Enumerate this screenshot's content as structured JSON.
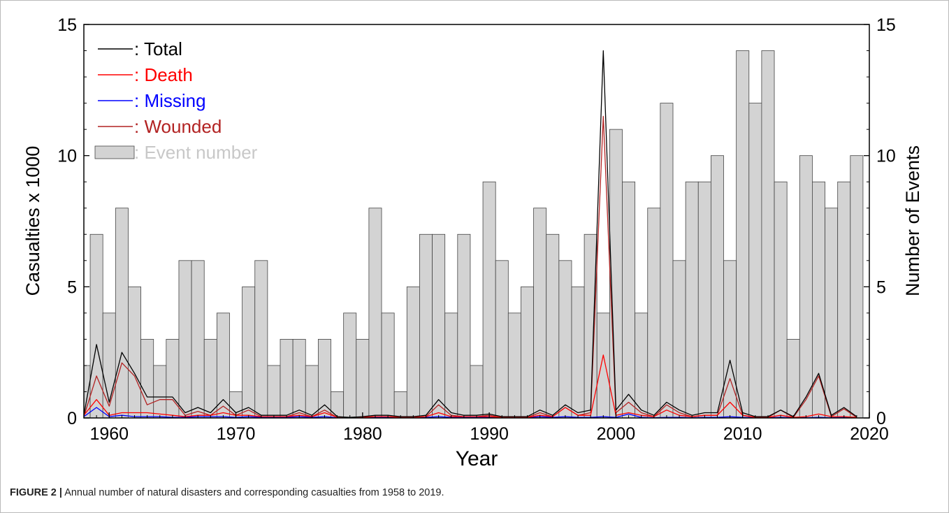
{
  "caption": {
    "label": "FIGURE 2 |",
    "text": " Annual number of natural disasters and corresponding casualties from 1958 to 2019."
  },
  "chart_data": {
    "type": "bar",
    "title": "",
    "xlabel": "Year",
    "ylabel_left": "Casualties x 1000",
    "ylabel_right": "Number of Events",
    "xlim": [
      1958,
      2020
    ],
    "ylim_left": [
      0,
      15
    ],
    "ylim_right": [
      0,
      15
    ],
    "x_ticks": [
      1960,
      1970,
      1980,
      1990,
      2000,
      2010,
      2020
    ],
    "y_ticks_left": [
      0,
      5,
      10,
      15
    ],
    "y_ticks_right": [
      0,
      5,
      10,
      15
    ],
    "legend_position": "top-left",
    "legend": [
      {
        "label": ": Total",
        "color": "#000000",
        "kind": "line"
      },
      {
        "label": ": Death",
        "color": "#ff0000",
        "kind": "line"
      },
      {
        "label": ": Missing",
        "color": "#0000ff",
        "kind": "line"
      },
      {
        "label": ": Wounded",
        "color": "#b22222",
        "kind": "line"
      },
      {
        "label": ": Event number",
        "color": "#d3d3d3",
        "kind": "bar"
      }
    ],
    "years": [
      1958,
      1959,
      1960,
      1961,
      1962,
      1963,
      1964,
      1965,
      1966,
      1967,
      1968,
      1969,
      1970,
      1971,
      1972,
      1973,
      1974,
      1975,
      1976,
      1977,
      1978,
      1979,
      1980,
      1981,
      1982,
      1983,
      1984,
      1985,
      1986,
      1987,
      1988,
      1989,
      1990,
      1991,
      1992,
      1993,
      1994,
      1995,
      1996,
      1997,
      1998,
      1999,
      2000,
      2001,
      2002,
      2003,
      2004,
      2005,
      2006,
      2007,
      2008,
      2009,
      2010,
      2011,
      2012,
      2013,
      2014,
      2015,
      2016,
      2017,
      2018,
      2019
    ],
    "event_number": [
      2,
      7,
      4,
      8,
      5,
      3,
      2,
      3,
      6,
      6,
      3,
      4,
      1,
      5,
      6,
      2,
      3,
      3,
      2,
      3,
      1,
      4,
      3,
      8,
      4,
      1,
      5,
      7,
      7,
      4,
      7,
      2,
      9,
      6,
      4,
      5,
      8,
      7,
      6,
      5,
      7,
      4,
      11,
      9,
      4,
      8,
      12,
      6,
      9,
      9,
      10,
      6,
      14,
      12,
      14,
      9,
      3,
      10,
      9,
      8,
      9,
      10
    ],
    "series": [
      {
        "name": "Total",
        "color": "#000000",
        "values": [
          0.1,
          2.8,
          0.6,
          2.5,
          1.7,
          0.8,
          0.8,
          0.8,
          0.2,
          0.4,
          0.2,
          0.7,
          0.2,
          0.4,
          0.1,
          0.1,
          0.1,
          0.3,
          0.1,
          0.5,
          0.05,
          0.02,
          0.05,
          0.1,
          0.1,
          0.05,
          0.05,
          0.1,
          0.7,
          0.2,
          0.1,
          0.1,
          0.15,
          0.05,
          0.05,
          0.05,
          0.3,
          0.1,
          0.5,
          0.2,
          0.3,
          14.0,
          0.3,
          0.9,
          0.3,
          0.1,
          0.6,
          0.3,
          0.1,
          0.2,
          0.2,
          2.2,
          0.2,
          0.05,
          0.05,
          0.3,
          0.05,
          0.8,
          1.7,
          0.1,
          0.4,
          0.05
        ]
      },
      {
        "name": "Death",
        "color": "#ff0000",
        "values": [
          0.1,
          0.7,
          0.1,
          0.2,
          0.2,
          0.2,
          0.15,
          0.1,
          0.05,
          0.1,
          0.1,
          0.2,
          0.1,
          0.1,
          0.05,
          0.05,
          0.05,
          0.1,
          0.05,
          0.2,
          0.02,
          0.02,
          0.02,
          0.05,
          0.05,
          0.02,
          0.02,
          0.05,
          0.2,
          0.05,
          0.05,
          0.05,
          0.05,
          0.02,
          0.02,
          0.02,
          0.1,
          0.05,
          0.4,
          0.1,
          0.1,
          2.4,
          0.1,
          0.2,
          0.1,
          0.05,
          0.3,
          0.1,
          0.05,
          0.1,
          0.1,
          0.6,
          0.1,
          0.02,
          0.02,
          0.1,
          0.02,
          0.05,
          0.15,
          0.05,
          0.05,
          0.02
        ]
      },
      {
        "name": "Missing",
        "color": "#0000ff",
        "values": [
          0.05,
          0.4,
          0.05,
          0.1,
          0.05,
          0.05,
          0.05,
          0.02,
          0.02,
          0.05,
          0.05,
          0.05,
          0.02,
          0.05,
          0.02,
          0.02,
          0.02,
          0.05,
          0.02,
          0.05,
          0.01,
          0.01,
          0.01,
          0.02,
          0.02,
          0.01,
          0.01,
          0.02,
          0.05,
          0.02,
          0.02,
          0.02,
          0.02,
          0.01,
          0.01,
          0.01,
          0.05,
          0.02,
          0.05,
          0.02,
          0.02,
          0.05,
          0.02,
          0.15,
          0.02,
          0.01,
          0.02,
          0.02,
          0.01,
          0.02,
          0.02,
          0.05,
          0.02,
          0.01,
          0.01,
          0.02,
          0.01,
          0.01,
          0.02,
          0.01,
          0.02,
          0.01
        ]
      },
      {
        "name": "Wounded",
        "color": "#b22222",
        "values": [
          0.05,
          1.6,
          0.45,
          2.1,
          1.6,
          0.5,
          0.7,
          0.7,
          0.1,
          0.25,
          0.1,
          0.45,
          0.1,
          0.3,
          0.05,
          0.05,
          0.05,
          0.2,
          0.05,
          0.3,
          0.02,
          0.01,
          0.03,
          0.05,
          0.05,
          0.02,
          0.02,
          0.05,
          0.5,
          0.1,
          0.05,
          0.05,
          0.1,
          0.02,
          0.02,
          0.02,
          0.2,
          0.05,
          0.4,
          0.1,
          0.2,
          11.5,
          0.2,
          0.6,
          0.2,
          0.05,
          0.5,
          0.2,
          0.05,
          0.1,
          0.1,
          1.5,
          0.1,
          0.02,
          0.02,
          0.3,
          0.02,
          0.7,
          1.6,
          0.05,
          0.35,
          0.02
        ]
      }
    ]
  }
}
